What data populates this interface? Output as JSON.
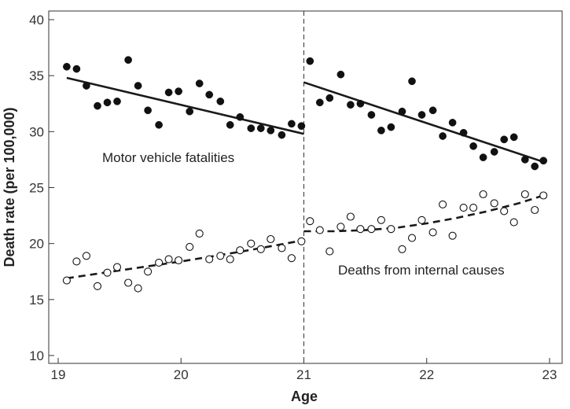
{
  "chart_data": {
    "type": "scatter",
    "xlabel": "Age",
    "ylabel": "Death rate (per 100,000)",
    "xlim": [
      19,
      23
    ],
    "ylim": [
      10,
      40
    ],
    "xticks": [
      19,
      20,
      21,
      22,
      23
    ],
    "yticks": [
      10,
      15,
      20,
      25,
      30,
      35,
      40
    ],
    "cutoff": 21,
    "annotations": [
      {
        "id": "motor",
        "text": "Motor vehicle fatalities"
      },
      {
        "id": "internal",
        "text": "Deaths from internal causes"
      }
    ],
    "series": [
      {
        "id": "motor",
        "marker": "filled-circle",
        "fit": "linear",
        "fit_line_style": "solid",
        "points": [
          [
            19.07,
            35.8
          ],
          [
            19.15,
            35.6
          ],
          [
            19.23,
            34.1
          ],
          [
            19.32,
            32.3
          ],
          [
            19.4,
            32.6
          ],
          [
            19.48,
            32.7
          ],
          [
            19.57,
            36.4
          ],
          [
            19.65,
            34.1
          ],
          [
            19.73,
            31.9
          ],
          [
            19.82,
            30.6
          ],
          [
            19.9,
            33.5
          ],
          [
            19.98,
            33.6
          ],
          [
            20.07,
            31.8
          ],
          [
            20.15,
            34.3
          ],
          [
            20.23,
            33.3
          ],
          [
            20.32,
            32.7
          ],
          [
            20.4,
            30.6
          ],
          [
            20.48,
            31.3
          ],
          [
            20.57,
            30.3
          ],
          [
            20.65,
            30.3
          ],
          [
            20.73,
            30.1
          ],
          [
            20.82,
            29.7
          ],
          [
            20.9,
            30.7
          ],
          [
            20.98,
            30.5
          ],
          [
            21.05,
            36.3
          ],
          [
            21.13,
            32.6
          ],
          [
            21.21,
            33.0
          ],
          [
            21.3,
            35.1
          ],
          [
            21.38,
            32.4
          ],
          [
            21.46,
            32.5
          ],
          [
            21.55,
            31.5
          ],
          [
            21.63,
            30.1
          ],
          [
            21.71,
            30.4
          ],
          [
            21.8,
            31.8
          ],
          [
            21.88,
            34.5
          ],
          [
            21.96,
            31.5
          ],
          [
            22.05,
            31.9
          ],
          [
            22.13,
            29.6
          ],
          [
            22.21,
            30.8
          ],
          [
            22.3,
            29.9
          ],
          [
            22.38,
            28.7
          ],
          [
            22.46,
            27.7
          ],
          [
            22.55,
            28.2
          ],
          [
            22.63,
            29.3
          ],
          [
            22.71,
            29.5
          ],
          [
            22.8,
            27.5
          ],
          [
            22.88,
            26.9
          ],
          [
            22.95,
            27.4
          ]
        ],
        "fit_segments": [
          {
            "x": [
              19.07,
              21.0
            ],
            "y": [
              34.8,
              29.8
            ]
          },
          {
            "x": [
              21.0,
              22.95
            ],
            "y": [
              34.4,
              27.3
            ]
          }
        ]
      },
      {
        "id": "internal",
        "marker": "open-circle",
        "fit": "quadratic",
        "fit_line_style": "dashed",
        "points": [
          [
            19.07,
            16.7
          ],
          [
            19.15,
            18.4
          ],
          [
            19.23,
            18.9
          ],
          [
            19.32,
            16.2
          ],
          [
            19.4,
            17.4
          ],
          [
            19.48,
            17.9
          ],
          [
            19.57,
            16.5
          ],
          [
            19.65,
            16.0
          ],
          [
            19.73,
            17.5
          ],
          [
            19.82,
            18.3
          ],
          [
            19.9,
            18.6
          ],
          [
            19.98,
            18.5
          ],
          [
            20.07,
            19.7
          ],
          [
            20.15,
            20.9
          ],
          [
            20.23,
            18.6
          ],
          [
            20.32,
            18.9
          ],
          [
            20.4,
            18.6
          ],
          [
            20.48,
            19.4
          ],
          [
            20.57,
            20.0
          ],
          [
            20.65,
            19.5
          ],
          [
            20.73,
            20.4
          ],
          [
            20.82,
            19.6
          ],
          [
            20.9,
            18.7
          ],
          [
            20.98,
            20.2
          ],
          [
            21.05,
            22.0
          ],
          [
            21.13,
            21.2
          ],
          [
            21.21,
            19.3
          ],
          [
            21.3,
            21.5
          ],
          [
            21.38,
            22.4
          ],
          [
            21.46,
            21.3
          ],
          [
            21.55,
            21.3
          ],
          [
            21.63,
            22.1
          ],
          [
            21.71,
            21.3
          ],
          [
            21.8,
            19.5
          ],
          [
            21.88,
            20.5
          ],
          [
            21.96,
            22.1
          ],
          [
            22.05,
            21.0
          ],
          [
            22.13,
            23.5
          ],
          [
            22.21,
            20.7
          ],
          [
            22.3,
            23.2
          ],
          [
            22.38,
            23.2
          ],
          [
            22.46,
            24.4
          ],
          [
            22.55,
            23.6
          ],
          [
            22.63,
            22.9
          ],
          [
            22.71,
            21.9
          ],
          [
            22.8,
            24.4
          ],
          [
            22.88,
            23.0
          ],
          [
            22.95,
            24.3
          ]
        ],
        "fit_segments": [
          {
            "x": [
              19.07,
              19.5,
              20.0,
              20.5,
              21.0
            ],
            "y": [
              16.9,
              17.6,
              18.4,
              19.3,
              20.3
            ]
          },
          {
            "x": [
              21.0,
              21.25,
              21.5,
              21.75,
              22.0,
              22.25,
              22.5,
              22.75,
              22.95
            ],
            "y": [
              21.1,
              21.1,
              21.2,
              21.4,
              21.8,
              22.3,
              22.9,
              23.6,
              24.3
            ]
          }
        ]
      }
    ]
  }
}
